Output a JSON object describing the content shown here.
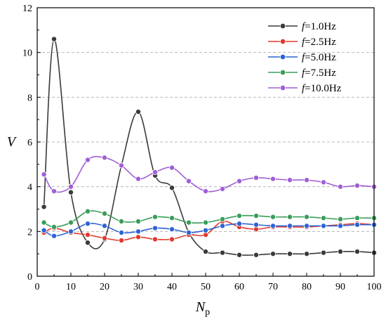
{
  "chart_data": {
    "type": "line",
    "xlabel": "N",
    "xlabel_sub": "p",
    "ylabel": "V",
    "xlim": [
      0,
      100
    ],
    "ylim": [
      0,
      12
    ],
    "x_ticks": [
      "0",
      "10",
      "20",
      "30",
      "40",
      "50",
      "60",
      "70",
      "80",
      "90",
      "100"
    ],
    "y_ticks": [
      "0",
      "2",
      "4",
      "6",
      "8",
      "10",
      "12"
    ],
    "grid": "horizontal dashed",
    "legend_position": "top-right",
    "x": [
      2,
      5,
      10,
      15,
      20,
      25,
      30,
      35,
      40,
      45,
      50,
      55,
      60,
      65,
      70,
      75,
      80,
      85,
      90,
      95,
      100
    ],
    "series": [
      {
        "name_prefix": "f",
        "name_rest": "=1.0Hz",
        "color": "#3a3a3a",
        "values": [
          3.1,
          10.6,
          3.75,
          1.5,
          1.65,
          4.95,
          7.35,
          4.5,
          3.95,
          1.95,
          1.1,
          1.05,
          0.95,
          0.95,
          1.0,
          1.0,
          1.0,
          1.05,
          1.1,
          1.1,
          1.05
        ]
      },
      {
        "name_prefix": "f",
        "name_rest": "=2.5Hz",
        "color": "#e03a2e",
        "values": [
          1.95,
          2.15,
          1.95,
          1.85,
          1.7,
          1.6,
          1.75,
          1.65,
          1.65,
          1.85,
          1.85,
          2.45,
          2.2,
          2.1,
          2.2,
          2.2,
          2.2,
          2.25,
          2.3,
          2.35,
          2.3
        ]
      },
      {
        "name_prefix": "f",
        "name_rest": "=5.0Hz",
        "color": "#2f64d6",
        "values": [
          2.05,
          1.8,
          2.0,
          2.35,
          2.25,
          1.95,
          2.0,
          2.15,
          2.1,
          1.95,
          2.05,
          2.25,
          2.35,
          2.3,
          2.25,
          2.25,
          2.25,
          2.25,
          2.25,
          2.3,
          2.3
        ]
      },
      {
        "name_prefix": "f",
        "name_rest": "=7.5Hz",
        "color": "#3a9d5a",
        "values": [
          2.4,
          2.2,
          2.4,
          2.9,
          2.8,
          2.45,
          2.45,
          2.65,
          2.6,
          2.4,
          2.4,
          2.55,
          2.7,
          2.7,
          2.65,
          2.65,
          2.65,
          2.6,
          2.55,
          2.6,
          2.6
        ]
      },
      {
        "name_prefix": "f",
        "name_rest": "=10.0Hz",
        "color": "#a05fd6",
        "values": [
          4.55,
          3.8,
          4.0,
          5.2,
          5.3,
          4.95,
          4.35,
          4.65,
          4.85,
          4.25,
          3.8,
          3.9,
          4.25,
          4.4,
          4.35,
          4.3,
          4.3,
          4.2,
          4.0,
          4.05,
          4.0
        ]
      }
    ]
  }
}
